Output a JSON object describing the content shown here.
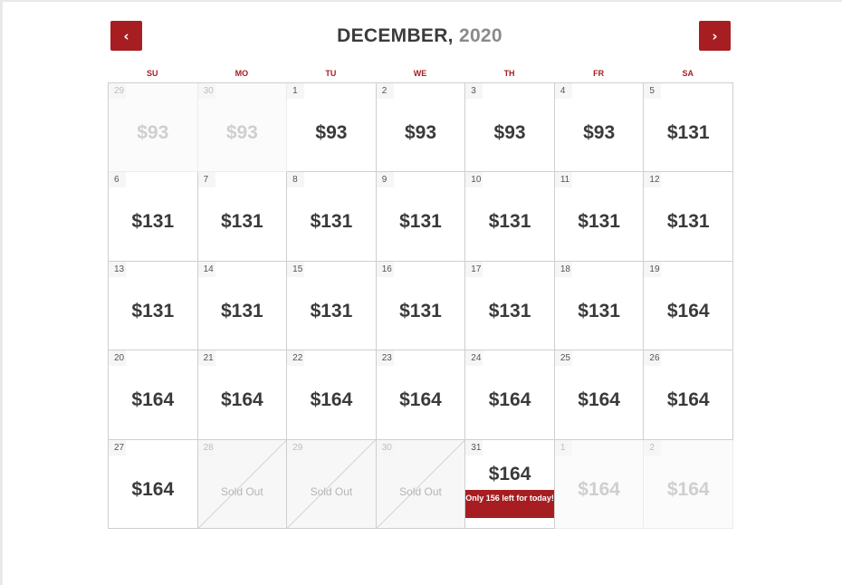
{
  "header": {
    "month": "DECEMBER,",
    "year": "2020",
    "prev_icon": "chevron-left-icon",
    "next_icon": "chevron-right-icon",
    "prev_glyph": "‹",
    "next_glyph": "›"
  },
  "weekdays": [
    "SU",
    "MO",
    "TU",
    "WE",
    "TH",
    "FR",
    "SA"
  ],
  "colors": {
    "accent": "#a61e22",
    "text": "#3a3a3a",
    "muted": "#cfcfcf"
  },
  "days": [
    {
      "day": "29",
      "price": "$93",
      "state": "muted"
    },
    {
      "day": "30",
      "price": "$93",
      "state": "muted"
    },
    {
      "day": "1",
      "price": "$93",
      "state": "available"
    },
    {
      "day": "2",
      "price": "$93",
      "state": "available"
    },
    {
      "day": "3",
      "price": "$93",
      "state": "available"
    },
    {
      "day": "4",
      "price": "$93",
      "state": "available"
    },
    {
      "day": "5",
      "price": "$131",
      "state": "available"
    },
    {
      "day": "6",
      "price": "$131",
      "state": "available"
    },
    {
      "day": "7",
      "price": "$131",
      "state": "available"
    },
    {
      "day": "8",
      "price": "$131",
      "state": "available"
    },
    {
      "day": "9",
      "price": "$131",
      "state": "available"
    },
    {
      "day": "10",
      "price": "$131",
      "state": "available"
    },
    {
      "day": "11",
      "price": "$131",
      "state": "available"
    },
    {
      "day": "12",
      "price": "$131",
      "state": "available"
    },
    {
      "day": "13",
      "price": "$131",
      "state": "available"
    },
    {
      "day": "14",
      "price": "$131",
      "state": "available"
    },
    {
      "day": "15",
      "price": "$131",
      "state": "available"
    },
    {
      "day": "16",
      "price": "$131",
      "state": "available"
    },
    {
      "day": "17",
      "price": "$131",
      "state": "available"
    },
    {
      "day": "18",
      "price": "$131",
      "state": "available"
    },
    {
      "day": "19",
      "price": "$164",
      "state": "available"
    },
    {
      "day": "20",
      "price": "$164",
      "state": "available"
    },
    {
      "day": "21",
      "price": "$164",
      "state": "available"
    },
    {
      "day": "22",
      "price": "$164",
      "state": "available"
    },
    {
      "day": "23",
      "price": "$164",
      "state": "available"
    },
    {
      "day": "24",
      "price": "$164",
      "state": "available"
    },
    {
      "day": "25",
      "price": "$164",
      "state": "available"
    },
    {
      "day": "26",
      "price": "$164",
      "state": "available"
    },
    {
      "day": "27",
      "price": "$164",
      "state": "available"
    },
    {
      "day": "28",
      "label": "Sold Out",
      "state": "soldout"
    },
    {
      "day": "29",
      "label": "Sold Out",
      "state": "soldout"
    },
    {
      "day": "30",
      "label": "Sold Out",
      "state": "soldout"
    },
    {
      "day": "31",
      "price": "$164",
      "state": "highlight",
      "note": "Only 156 left for today!"
    },
    {
      "day": "1",
      "price": "$164",
      "state": "muted"
    },
    {
      "day": "2",
      "price": "$164",
      "state": "muted"
    }
  ]
}
